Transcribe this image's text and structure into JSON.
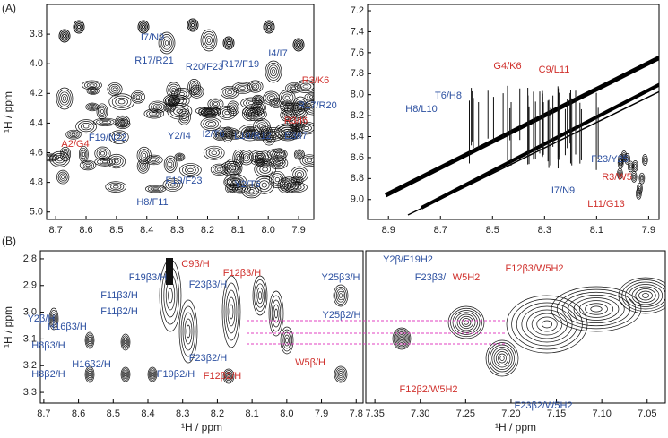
{
  "panel_labels": [
    "(A)",
    "(B)"
  ],
  "chart_data": [
    {
      "type": "contour",
      "panel": "A-left",
      "ylabel": "¹H / ppm",
      "xlim": [
        8.73,
        7.85
      ],
      "ylim": [
        3.6,
        5.05
      ],
      "xticks": [
        8.7,
        8.6,
        8.5,
        8.4,
        8.3,
        8.2,
        8.1,
        {
          "value": 8.0,
          "label": "8.0"
        },
        7.9
      ],
      "yticks": [
        3.8,
        {
          "value": 4.0,
          "label": "4.0"
        },
        4.2,
        4.4,
        4.6,
        4.8,
        {
          "value": 5.0,
          "label": "5.0"
        }
      ],
      "annotations": [
        {
          "text": "I7/N9",
          "color": "#2b4fa0"
        },
        {
          "text": "R17/R21",
          "color": "#2b4fa0"
        },
        {
          "text": "R20/F23",
          "color": "#2b4fa0"
        },
        {
          "text": "R17/F19",
          "color": "#2b4fa0"
        },
        {
          "text": "I4/I7",
          "color": "#2b4fa0"
        },
        {
          "text": "R3/K6",
          "color": "#d0312d"
        },
        {
          "text": "R17/R20",
          "color": "#2b4fa0"
        },
        {
          "text": "R3/I6",
          "color": "#d0312d"
        },
        {
          "text": "E3/I7",
          "color": "#2b4fa0"
        },
        {
          "text": "L10/R12",
          "color": "#2b4fa0"
        },
        {
          "text": "I2/T6",
          "color": "#2b4fa0"
        },
        {
          "text": "Y2/I4",
          "color": "#2b4fa0"
        },
        {
          "text": "F19/N22",
          "color": "#2b4fa0"
        },
        {
          "text": "A2/G4",
          "color": "#d0312d"
        },
        {
          "text": "F19/F23",
          "color": "#2b4fa0"
        },
        {
          "text": "Y2/T6",
          "color": "#2b4fa0"
        },
        {
          "text": "H8/F11",
          "color": "#2b4fa0"
        }
      ]
    },
    {
      "type": "contour",
      "panel": "A-right",
      "xlim": [
        8.98,
        7.86
      ],
      "ylim": [
        7.14,
        9.19
      ],
      "xticks": [
        8.9,
        8.7,
        8.5,
        8.3,
        8.1,
        7.9
      ],
      "yticks": [
        7.2,
        7.4,
        7.6,
        7.8,
        {
          "value": 8.0,
          "label": "8.0"
        },
        8.2,
        8.4,
        8.6,
        8.8,
        {
          "value": 9.0,
          "label": "9.0"
        }
      ],
      "annotations": [
        {
          "text": "G4/K6",
          "color": "#d0312d"
        },
        {
          "text": "C9/L11",
          "color": "#d0312d"
        },
        {
          "text": "T6/H8",
          "color": "#2b4fa0"
        },
        {
          "text": "H8/L10",
          "color": "#2b4fa0"
        },
        {
          "text": "F23/Y25",
          "color": "#2b4fa0"
        },
        {
          "text": "R3/W5",
          "color": "#d0312d"
        },
        {
          "text": "I7/N9",
          "color": "#2b4fa0"
        },
        {
          "text": "L11/G13",
          "color": "#d0312d"
        }
      ]
    },
    {
      "type": "contour",
      "panel": "B-left",
      "xlabel": "¹H / ppm",
      "ylabel": "¹H / ppm",
      "xlim": [
        8.71,
        7.78
      ],
      "ylim": [
        2.77,
        3.34
      ],
      "xticks": [
        8.7,
        8.6,
        8.5,
        8.4,
        8.3,
        8.2,
        8.1,
        {
          "value": 8.0,
          "label": "8.0"
        },
        7.9,
        7.8
      ],
      "yticks": [
        2.8,
        2.9,
        {
          "value": 3.0,
          "label": "3.0"
        },
        3.1,
        3.2,
        3.3
      ],
      "annotations": [
        {
          "text": "C9β/H",
          "color": "#d0312d"
        },
        {
          "text": "F12β3/H",
          "color": "#d0312d"
        },
        {
          "text": "Y25β3/H",
          "color": "#2b4fa0"
        },
        {
          "text": "F19β3/H",
          "color": "#2b4fa0"
        },
        {
          "text": "F23β3/H",
          "color": "#2b4fa0"
        },
        {
          "text": "F11β3/H",
          "color": "#2b4fa0"
        },
        {
          "text": "F11β2/H",
          "color": "#2b4fa0"
        },
        {
          "text": "Y2β/H",
          "color": "#2b4fa0"
        },
        {
          "text": "H16β3/H",
          "color": "#2b4fa0"
        },
        {
          "text": "Y25β2/H",
          "color": "#2b4fa0"
        },
        {
          "text": "H8β3/H",
          "color": "#2b4fa0"
        },
        {
          "text": "F23β2/H",
          "color": "#2b4fa0"
        },
        {
          "text": "W5β/H",
          "color": "#d0312d"
        },
        {
          "text": "F19β2/H",
          "color": "#2b4fa0"
        },
        {
          "text": "H16β2/H",
          "color": "#2b4fa0"
        },
        {
          "text": "F12β2/H",
          "color": "#d0312d"
        },
        {
          "text": "H8β2/H",
          "color": "#2b4fa0"
        }
      ]
    },
    {
      "type": "contour",
      "panel": "B-right",
      "xlabel": "¹H / ppm",
      "xlim": [
        7.36,
        7.03
      ],
      "ylim": [
        2.77,
        3.34
      ],
      "xticks": [
        7.35,
        {
          "value": 7.3,
          "label": "7.30"
        },
        7.25,
        {
          "value": 7.2,
          "label": "7.20"
        },
        7.15,
        {
          "value": 7.1,
          "label": "7.10"
        },
        7.05
      ],
      "annotations": [
        {
          "text": "Y2β/F19H2",
          "color": "#2b4fa0"
        },
        {
          "text": "F12β3/W5H2",
          "color": "#d0312d"
        },
        {
          "text": "F23β3/",
          "color": "#2b4fa0"
        },
        {
          "text": "W5H2",
          "color": "#d0312d"
        },
        {
          "text": "F12β2/W5H2",
          "color": "#d0312d"
        },
        {
          "text": "F23β2/W5H2",
          "color": "#2b4fa0"
        }
      ]
    }
  ]
}
